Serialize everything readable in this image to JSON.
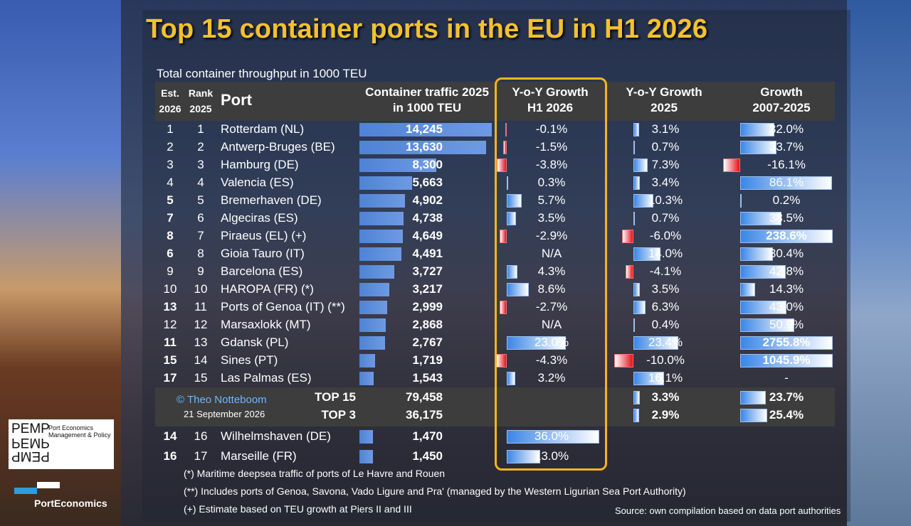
{
  "title": "Top 15 container ports in the EU in H1 2026",
  "subtitle": "Total container throughput in 1000 TEU",
  "headers": {
    "est": "Est.",
    "est2": "2026",
    "rank": "Rank",
    "rank2": "2025",
    "port": "Port",
    "traffic1": "Container traffic 2025",
    "traffic2": "in 1000 TEU",
    "yoyh1_1": "Y-o-Y Growth",
    "yoyh1_2": "H1 2026",
    "yoy25_1": "Y-o-Y Growth",
    "yoy25_2": "2025",
    "g0725_1": "Growth",
    "g0725_2": "2007-2025"
  },
  "chart_data": {
    "type": "table",
    "rows": [
      {
        "est": "1",
        "est_bold": false,
        "rank": "1",
        "port": "Rotterdam (NL)",
        "traffic": 14245,
        "traffic_label": "14,245",
        "h1": -0.1,
        "h1_label": "-0.1%",
        "y25": 3.1,
        "y25_label": "3.1%",
        "g": 32.0,
        "g_label": "32.0%",
        "g_bold": false
      },
      {
        "est": "2",
        "est_bold": false,
        "rank": "2",
        "port": "Antwerp-Bruges (BE)",
        "traffic": 13630,
        "traffic_label": "13,630",
        "h1": -1.5,
        "h1_label": "-1.5%",
        "y25": 0.7,
        "y25_label": "0.7%",
        "g": 33.7,
        "g_label": "33.7%",
        "g_bold": false
      },
      {
        "est": "3",
        "est_bold": false,
        "rank": "3",
        "port": "Hamburg (DE)",
        "traffic": 8300,
        "traffic_label": "8,300",
        "h1": -3.8,
        "h1_label": "-3.8%",
        "y25": 7.3,
        "y25_label": "7.3%",
        "g": -16.1,
        "g_label": "-16.1%",
        "g_bold": false
      },
      {
        "est": "4",
        "est_bold": false,
        "rank": "4",
        "port": "Valencia (ES)",
        "traffic": 5663,
        "traffic_label": "5,663",
        "h1": 0.3,
        "h1_label": "0.3%",
        "y25": 3.4,
        "y25_label": "3.4%",
        "g": 86.1,
        "g_label": "86.1%",
        "g_bold": false
      },
      {
        "est": "5",
        "est_bold": true,
        "rank": "5",
        "port": "Bremerhaven (DE)",
        "traffic": 4902,
        "traffic_label": "4,902",
        "h1": 5.7,
        "h1_label": "5.7%",
        "y25": 10.3,
        "y25_label": "10.3%",
        "g": 0.2,
        "g_label": "0.2%",
        "g_bold": false
      },
      {
        "est": "7",
        "est_bold": true,
        "rank": "6",
        "port": "Algeciras (ES)",
        "traffic": 4738,
        "traffic_label": "4,738",
        "h1": 3.5,
        "h1_label": "3.5%",
        "y25": 0.7,
        "y25_label": "0.7%",
        "g": 38.5,
        "g_label": "38.5%",
        "g_bold": false
      },
      {
        "est": "8",
        "est_bold": true,
        "rank": "7",
        "port": "Piraeus (EL) (+)",
        "traffic": 4649,
        "traffic_label": "4,649",
        "h1": -2.9,
        "h1_label": "-2.9%",
        "y25": -6.0,
        "y25_label": "-6.0%",
        "g": 238.6,
        "g_label": "238.6%",
        "g_bold": true
      },
      {
        "est": "6",
        "est_bold": true,
        "rank": "8",
        "port": "Gioia Tauro (IT)",
        "traffic": 4491,
        "traffic_label": "4,491",
        "h1": null,
        "h1_label": "N/A",
        "y25": 14.0,
        "y25_label": "14.0%",
        "g": 30.4,
        "g_label": "30.4%",
        "g_bold": false
      },
      {
        "est": "9",
        "est_bold": false,
        "rank": "9",
        "port": "Barcelona (ES)",
        "traffic": 3727,
        "traffic_label": "3,727",
        "h1": 4.3,
        "h1_label": "4.3%",
        "y25": -4.1,
        "y25_label": "-4.1%",
        "g": 42.8,
        "g_label": "42.8%",
        "g_bold": false
      },
      {
        "est": "10",
        "est_bold": false,
        "rank": "10",
        "port": "HAROPA (FR) (*)",
        "traffic": 3217,
        "traffic_label": "3,217",
        "h1": 8.6,
        "h1_label": "8.6%",
        "y25": 3.5,
        "y25_label": "3.5%",
        "g": 14.3,
        "g_label": "14.3%",
        "g_bold": false
      },
      {
        "est": "13",
        "est_bold": true,
        "rank": "11",
        "port": "Ports of Genoa (IT) (**)",
        "traffic": 2999,
        "traffic_label": "2,999",
        "h1": -2.7,
        "h1_label": "-2.7%",
        "y25": 6.3,
        "y25_label": "6.3%",
        "g": 43.0,
        "g_label": "43.0%",
        "g_bold": false
      },
      {
        "est": "12",
        "est_bold": false,
        "rank": "12",
        "port": "Marsaxlokk (MT)",
        "traffic": 2868,
        "traffic_label": "2,868",
        "h1": null,
        "h1_label": "N/A",
        "y25": 0.4,
        "y25_label": "0.4%",
        "g": 50.9,
        "g_label": "50.9%",
        "g_bold": false
      },
      {
        "est": "11",
        "est_bold": true,
        "rank": "13",
        "port": "Gdansk (PL)",
        "traffic": 2767,
        "traffic_label": "2,767",
        "h1": 23.0,
        "h1_label": "23.0%",
        "y25": 23.4,
        "y25_label": "23.4%",
        "g": 2755.8,
        "g_label": "2755.8%",
        "g_bold": true
      },
      {
        "est": "15",
        "est_bold": true,
        "rank": "14",
        "port": "Sines (PT)",
        "traffic": 1719,
        "traffic_label": "1,719",
        "h1": -4.3,
        "h1_label": "-4.3%",
        "y25": -10.0,
        "y25_label": "-10.0%",
        "g": 1045.9,
        "g_label": "1045.9%",
        "g_bold": true
      },
      {
        "est": "17",
        "est_bold": true,
        "rank": "15",
        "port": "Las Palmas (ES)",
        "traffic": 1543,
        "traffic_label": "1,543",
        "h1": 3.2,
        "h1_label": "3.2%",
        "y25": 16.1,
        "y25_label": "16.1%",
        "g": null,
        "g_label": "-",
        "g_bold": false
      }
    ],
    "totals": [
      {
        "label": "TOP 15",
        "traffic_label": "79,458",
        "y25": 3.3,
        "y25_label": "3.3%",
        "g": 23.7,
        "g_label": "23.7%"
      },
      {
        "label": "TOP 3",
        "traffic_label": "36,175",
        "y25": 2.9,
        "y25_label": "2.9%",
        "g": 25.4,
        "g_label": "25.4%"
      }
    ],
    "extra": [
      {
        "est": "14",
        "rank": "16",
        "port": "Wilhelmshaven (DE)",
        "traffic": 1470,
        "traffic_label": "1,470",
        "h1": 36.0,
        "h1_label": "36.0%"
      },
      {
        "est": "16",
        "rank": "17",
        "port": "Marseille (FR)",
        "traffic": 1450,
        "traffic_label": "1,450",
        "h1": 13.0,
        "h1_label": "13.0%"
      }
    ],
    "colors": {
      "traffic_bar": "#5b8fdc",
      "positive": "#3b86e6",
      "negative": "#e5111a",
      "highlight": "#f2b51e",
      "title": "#f2c12e"
    }
  },
  "credit": {
    "name": "© Theo Notteboom",
    "date": "21 September 2026"
  },
  "footnotes": [
    "(*) Maritime deepsea traffic of ports of Le Havre and Rouen",
    "(**) Includes ports of Genoa, Savona, Vado Ligure and Pra' (managed by the Western Ligurian Sea Port Authority)",
    "(+) Estimate based on TEU growth at Piers II and III"
  ],
  "source": "Source: own compilation based on data port authorities",
  "logos": {
    "pemp_mark": "PEMP",
    "pemp_line1": "Port Economics",
    "pemp_line2": "Management & Policy",
    "pe_name": "PortEconomics"
  }
}
